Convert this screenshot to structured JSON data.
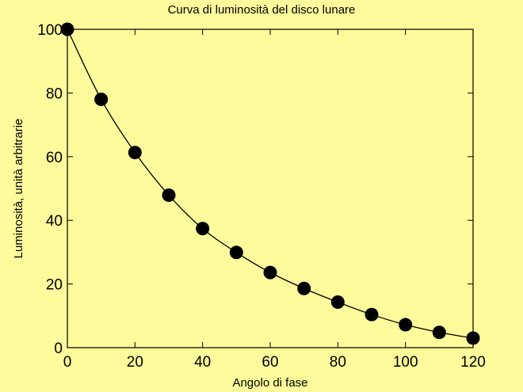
{
  "chart_data": {
    "type": "scatter",
    "title": "Curva di luminosità del disco lunare",
    "xlabel": "Angolo di fase",
    "ylabel": "Luminosità, unità arbitrarie",
    "xlim": [
      0,
      120
    ],
    "ylim": [
      0,
      100
    ],
    "xticks": [
      "0",
      "20",
      "40",
      "60",
      "80",
      "100",
      "120"
    ],
    "yticks": [
      "0",
      "20",
      "40",
      "60",
      "80",
      "100"
    ],
    "grid": false,
    "series": [
      {
        "marker": "filled-circle",
        "x": [
          0,
          10,
          20,
          30,
          40,
          50,
          60,
          70,
          80,
          90,
          100,
          110,
          120
        ],
        "y": [
          100,
          78,
          61.3,
          47.9,
          37.4,
          29.9,
          23.6,
          18.6,
          14.3,
          10.4,
          7.2,
          4.8,
          3
        ]
      }
    ],
    "fit_curve": {
      "style": "line",
      "x": [
        0,
        10,
        20,
        30,
        40,
        50,
        60,
        70,
        80,
        90,
        100,
        110,
        120
      ],
      "y": [
        100,
        78,
        61.3,
        47.9,
        37.4,
        29.9,
        23.6,
        18.6,
        14.3,
        10.4,
        7.2,
        4.8,
        3
      ]
    },
    "colors": {
      "background": "#fdfb9b",
      "plot_area": "#fdfb9b",
      "markers": "#000000",
      "line": "#000000"
    }
  }
}
